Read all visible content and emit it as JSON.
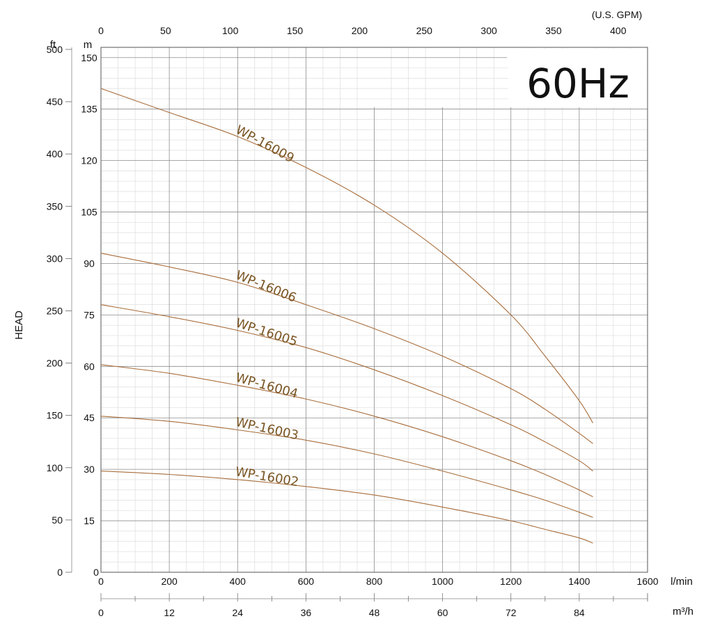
{
  "chart_data": {
    "type": "line",
    "title": "60Hz",
    "ylabel": "HEAD",
    "xlim": [
      0,
      1600
    ],
    "ylim_m": [
      0,
      153
    ],
    "grid": true,
    "units": {
      "flow_lmin": "l/min",
      "flow_m3h": "m³/h",
      "flow_gpm": "(U.S. GPM)",
      "head_m": "m",
      "head_ft": "ft"
    },
    "axes": {
      "x_lmin_ticks": [
        0,
        200,
        400,
        600,
        800,
        1000,
        1200,
        1400,
        1600
      ],
      "x_m3h_ticks": [
        0,
        12,
        24,
        36,
        48,
        60,
        72,
        84
      ],
      "x_gpm_ticks": [
        0,
        50,
        100,
        150,
        200,
        250,
        300,
        350,
        400
      ],
      "y_m_ticks": [
        15,
        30,
        45,
        60,
        75,
        90,
        105,
        120,
        135,
        150
      ],
      "y_ft_ticks": [
        0,
        50,
        100,
        150,
        200,
        250,
        300,
        350,
        400,
        450,
        500
      ]
    },
    "series": [
      {
        "name": "WP-16009",
        "x": [
          0,
          200,
          400,
          600,
          800,
          1000,
          1200,
          1300,
          1400,
          1440
        ],
        "y": [
          141,
          134,
          127,
          118,
          107,
          93,
          75,
          63,
          50,
          43.5
        ]
      },
      {
        "name": "WP-16006",
        "x": [
          0,
          200,
          400,
          600,
          800,
          1000,
          1200,
          1300,
          1400,
          1440
        ],
        "y": [
          93,
          89,
          84.5,
          78,
          71,
          63,
          53.5,
          47.5,
          40.5,
          37.5
        ]
      },
      {
        "name": "WP-16005",
        "x": [
          0,
          200,
          400,
          600,
          800,
          1000,
          1200,
          1300,
          1400,
          1440
        ],
        "y": [
          78,
          74.5,
          70.5,
          65.5,
          59,
          51.5,
          43,
          38,
          32.5,
          29.5
        ]
      },
      {
        "name": "WP-16004",
        "x": [
          0,
          200,
          400,
          600,
          800,
          1000,
          1200,
          1300,
          1400,
          1440
        ],
        "y": [
          60.5,
          58,
          54.5,
          50.5,
          45.5,
          39.5,
          32.5,
          28.5,
          24,
          22
        ]
      },
      {
        "name": "WP-16003",
        "x": [
          0,
          200,
          400,
          600,
          800,
          1000,
          1200,
          1300,
          1400,
          1440
        ],
        "y": [
          45.5,
          44,
          41.5,
          38.5,
          34.5,
          29.5,
          24,
          21,
          17.5,
          16
        ]
      },
      {
        "name": "WP-16002",
        "x": [
          0,
          200,
          400,
          600,
          800,
          1000,
          1200,
          1300,
          1400,
          1440
        ],
        "y": [
          29.5,
          28.5,
          27,
          25,
          22.5,
          19,
          15,
          12.5,
          10,
          8.5
        ]
      }
    ]
  },
  "colors": {
    "curve": "#a86d3b",
    "label": "#7a5523",
    "grid_major": "#8c8c8c",
    "grid_minor": "#dddddd"
  }
}
